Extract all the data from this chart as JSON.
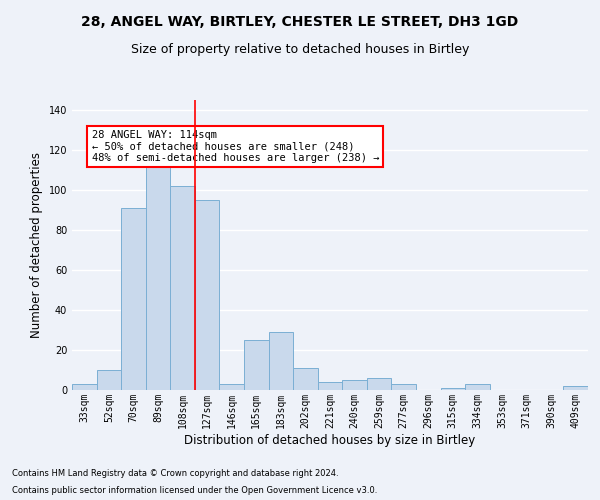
{
  "categories": [
    "33sqm",
    "52sqm",
    "70sqm",
    "89sqm",
    "108sqm",
    "127sqm",
    "146sqm",
    "165sqm",
    "183sqm",
    "202sqm",
    "221sqm",
    "240sqm",
    "259sqm",
    "277sqm",
    "296sqm",
    "315sqm",
    "334sqm",
    "353sqm",
    "371sqm",
    "390sqm",
    "409sqm"
  ],
  "values": [
    3,
    10,
    91,
    114,
    102,
    95,
    3,
    25,
    29,
    11,
    4,
    5,
    6,
    3,
    0,
    1,
    3,
    0,
    0,
    0,
    2
  ],
  "bar_color": "#c9d9ec",
  "bar_edgecolor": "#7bafd4",
  "title_line1": "28, ANGEL WAY, BIRTLEY, CHESTER LE STREET, DH3 1GD",
  "title_line2": "Size of property relative to detached houses in Birtley",
  "xlabel": "Distribution of detached houses by size in Birtley",
  "ylabel": "Number of detached properties",
  "ylim": [
    0,
    145
  ],
  "vline_x": 4.5,
  "vline_color": "red",
  "annotation_text": "28 ANGEL WAY: 114sqm\n← 50% of detached houses are smaller (248)\n48% of semi-detached houses are larger (238) →",
  "annotation_box_color": "white",
  "annotation_box_edgecolor": "red",
  "footnote1": "Contains HM Land Registry data © Crown copyright and database right 2024.",
  "footnote2": "Contains public sector information licensed under the Open Government Licence v3.0.",
  "background_color": "#eef2f9",
  "grid_color": "white",
  "title_fontsize": 10,
  "subtitle_fontsize": 9,
  "tick_fontsize": 7,
  "ylabel_fontsize": 8.5,
  "xlabel_fontsize": 8.5,
  "annotation_fontsize": 7.5,
  "footnote_fontsize": 6
}
